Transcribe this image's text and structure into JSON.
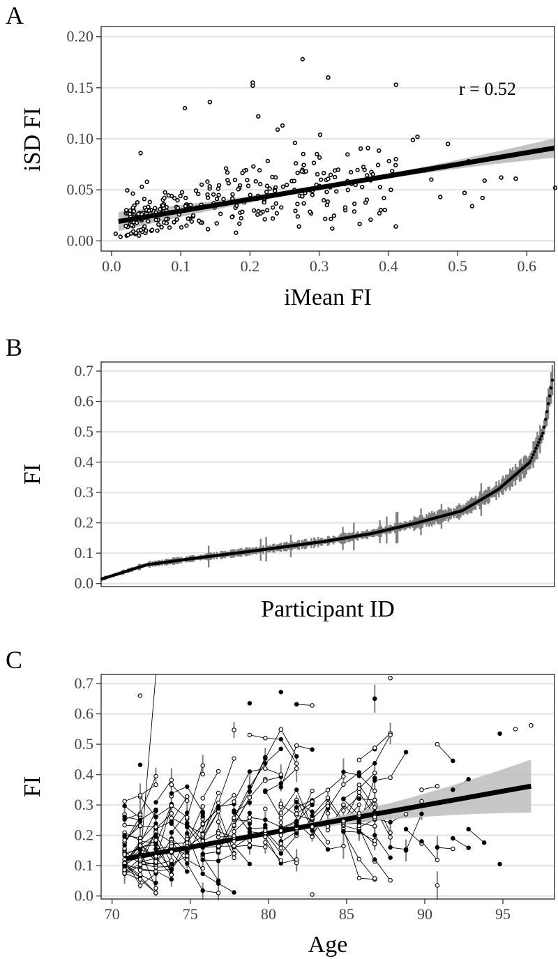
{
  "chart_data": [
    {
      "panel": "A",
      "type": "scatter",
      "xlabel": "iMean FI",
      "ylabel": "iSD FI",
      "xlim": [
        -0.015,
        0.64
      ],
      "ylim": [
        -0.01,
        0.21
      ],
      "x_ticks": [
        "0.0",
        "0.1",
        "0.2",
        "0.3",
        "0.4",
        "0.5",
        "0.6"
      ],
      "y_ticks": [
        "0.00",
        "0.05",
        "0.10",
        "0.15",
        "0.20"
      ],
      "annotation": "r = 0.52",
      "fit": {
        "x0": 0.01,
        "y0": 0.019,
        "x1": 0.64,
        "y1": 0.091,
        "band_low_end": 0.082,
        "band_high_end": 0.101
      },
      "outliers": [
        {
          "x": 0.276,
          "y": 0.178
        },
        {
          "x": 0.313,
          "y": 0.16
        },
        {
          "x": 0.204,
          "y": 0.155
        },
        {
          "x": 0.204,
          "y": 0.152
        },
        {
          "x": 0.411,
          "y": 0.153
        },
        {
          "x": 0.142,
          "y": 0.136
        },
        {
          "x": 0.106,
          "y": 0.13
        },
        {
          "x": 0.212,
          "y": 0.122
        },
        {
          "x": 0.247,
          "y": 0.113
        },
        {
          "x": 0.24,
          "y": 0.109
        },
        {
          "x": 0.442,
          "y": 0.102
        },
        {
          "x": 0.265,
          "y": 0.096
        },
        {
          "x": 0.486,
          "y": 0.095
        },
        {
          "x": 0.042,
          "y": 0.086
        },
        {
          "x": 0.387,
          "y": 0.027
        },
        {
          "x": 0.462,
          "y": 0.06
        },
        {
          "x": 0.475,
          "y": 0.043
        },
        {
          "x": 0.51,
          "y": 0.047
        },
        {
          "x": 0.521,
          "y": 0.034
        },
        {
          "x": 0.536,
          "y": 0.042
        },
        {
          "x": 0.539,
          "y": 0.059
        },
        {
          "x": 0.563,
          "y": 0.062
        },
        {
          "x": 0.584,
          "y": 0.061
        },
        {
          "x": 0.641,
          "y": 0.052
        },
        {
          "x": 0.516,
          "y": 0.078
        },
        {
          "x": 0.452,
          "y": 0.069
        },
        {
          "x": 0.006,
          "y": 0.007
        },
        {
          "x": 0.013,
          "y": 0.004
        }
      ]
    },
    {
      "panel": "B",
      "type": "line",
      "xlabel": "Participant ID",
      "ylabel": "FI",
      "ylim": [
        -0.01,
        0.73
      ],
      "y_ticks": [
        "0.0",
        "0.1",
        "0.2",
        "0.3",
        "0.4",
        "0.5",
        "0.6",
        "0.7"
      ],
      "sorted_mean_fi_knots": [
        {
          "p": 0.0,
          "y": 0.015
        },
        {
          "p": 0.1,
          "y": 0.062
        },
        {
          "p": 0.2,
          "y": 0.082
        },
        {
          "p": 0.35,
          "y": 0.11
        },
        {
          "p": 0.5,
          "y": 0.14
        },
        {
          "p": 0.6,
          "y": 0.165
        },
        {
          "p": 0.7,
          "y": 0.2
        },
        {
          "p": 0.8,
          "y": 0.24
        },
        {
          "p": 0.88,
          "y": 0.31
        },
        {
          "p": 0.95,
          "y": 0.4
        },
        {
          "p": 0.98,
          "y": 0.5
        },
        {
          "p": 1.0,
          "y": 0.67
        }
      ]
    },
    {
      "panel": "C",
      "type": "scatter",
      "xlabel": "Age",
      "ylabel": "FI",
      "xlim": [
        69.3,
        98.3
      ],
      "ylim": [
        -0.01,
        0.73
      ],
      "x_ticks": [
        "70",
        "75",
        "80",
        "85",
        "90",
        "95"
      ],
      "y_ticks": [
        "0.0",
        "0.1",
        "0.2",
        "0.3",
        "0.4",
        "0.5",
        "0.6",
        "0.7"
      ],
      "fit": {
        "x0": 70.8,
        "y0": 0.122,
        "x1": 96.8,
        "y1": 0.362,
        "band_low_end": 0.275,
        "band_high_end": 0.45
      },
      "example_points": [
        {
          "age": 71.8,
          "fi": 0.66
        },
        {
          "age": 80.8,
          "fi": 0.672
        },
        {
          "age": 78.8,
          "fi": 0.635
        },
        {
          "age": 86.8,
          "fi": 0.65
        },
        {
          "age": 87.8,
          "fi": 0.718
        },
        {
          "age": 94.8,
          "fi": 0.535
        },
        {
          "age": 95.8,
          "fi": 0.55
        },
        {
          "age": 96.8,
          "fi": 0.562
        },
        {
          "age": 94.8,
          "fi": 0.105
        },
        {
          "age": 90.8,
          "fi": 0.035
        },
        {
          "age": 82.8,
          "fi": 0.005
        }
      ]
    }
  ],
  "panels": {
    "a": {
      "letter": "A",
      "xlabel": "iMean FI",
      "ylabel": "iSD FI",
      "annotation": "r = 0.52"
    },
    "b": {
      "letter": "B",
      "xlabel": "Participant ID",
      "ylabel": "FI"
    },
    "c": {
      "letter": "C",
      "xlabel": "Age",
      "ylabel": "FI"
    }
  },
  "colors": {
    "line": "#000000",
    "band": "#bdbdbd",
    "error_bar": "#808080",
    "grid": "#e6e6e6"
  }
}
